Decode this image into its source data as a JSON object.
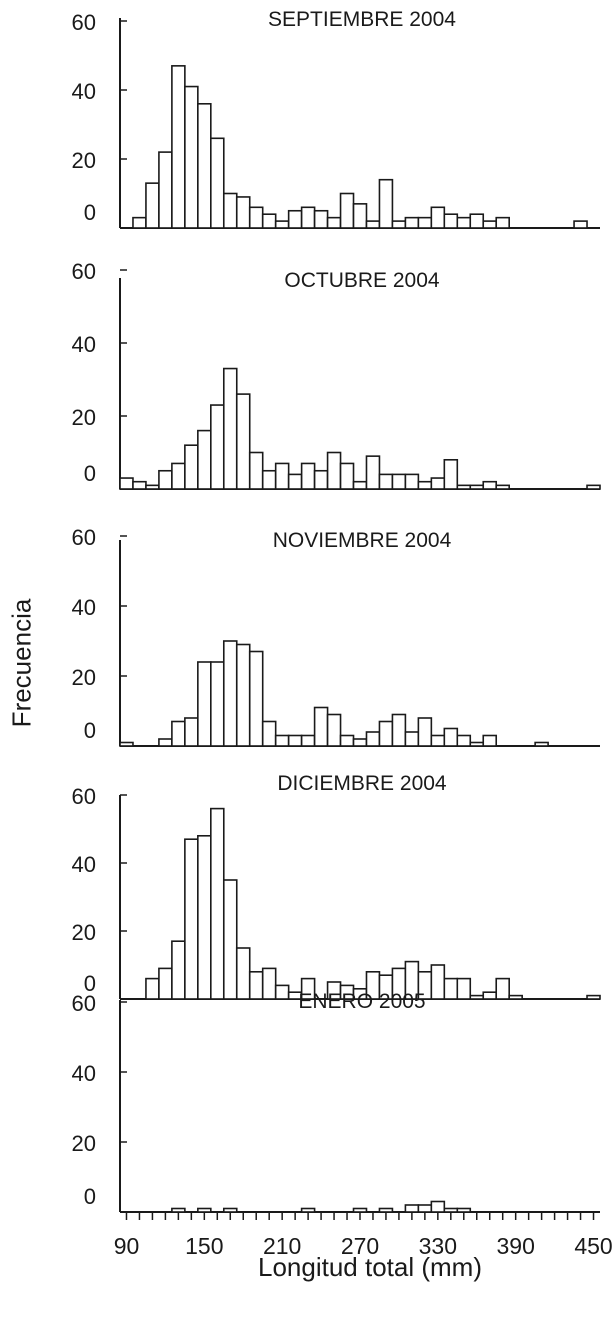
{
  "chart_data": {
    "type": "bar",
    "ylabel": "Frecuencia",
    "xlabel": "Longitud total (mm)",
    "x_ticks": [
      "90",
      "150",
      "210",
      "270",
      "330",
      "390",
      "450"
    ],
    "y_ticks": [
      "0",
      "20",
      "40",
      "60"
    ],
    "ylim": [
      0,
      60
    ],
    "panels": [
      {
        "title": "SEPTIEMBRE 2004",
        "bars": [
          {
            "x": 100,
            "y": 3
          },
          {
            "x": 110,
            "y": 13
          },
          {
            "x": 120,
            "y": 22
          },
          {
            "x": 130,
            "y": 47
          },
          {
            "x": 140,
            "y": 41
          },
          {
            "x": 150,
            "y": 36
          },
          {
            "x": 160,
            "y": 26
          },
          {
            "x": 170,
            "y": 10
          },
          {
            "x": 180,
            "y": 9
          },
          {
            "x": 190,
            "y": 6
          },
          {
            "x": 200,
            "y": 4
          },
          {
            "x": 210,
            "y": 2
          },
          {
            "x": 220,
            "y": 5
          },
          {
            "x": 230,
            "y": 6
          },
          {
            "x": 240,
            "y": 5
          },
          {
            "x": 250,
            "y": 3
          },
          {
            "x": 260,
            "y": 10
          },
          {
            "x": 270,
            "y": 7
          },
          {
            "x": 280,
            "y": 2
          },
          {
            "x": 290,
            "y": 14
          },
          {
            "x": 300,
            "y": 2
          },
          {
            "x": 310,
            "y": 3
          },
          {
            "x": 320,
            "y": 3
          },
          {
            "x": 330,
            "y": 6
          },
          {
            "x": 340,
            "y": 4
          },
          {
            "x": 350,
            "y": 3
          },
          {
            "x": 360,
            "y": 4
          },
          {
            "x": 370,
            "y": 2
          },
          {
            "x": 380,
            "y": 3
          },
          {
            "x": 440,
            "y": 2
          }
        ]
      },
      {
        "title": "OCTUBRE 2004",
        "bars": [
          {
            "x": 90,
            "y": 3
          },
          {
            "x": 100,
            "y": 2
          },
          {
            "x": 110,
            "y": 1
          },
          {
            "x": 120,
            "y": 5
          },
          {
            "x": 130,
            "y": 7
          },
          {
            "x": 140,
            "y": 12
          },
          {
            "x": 150,
            "y": 16
          },
          {
            "x": 160,
            "y": 23
          },
          {
            "x": 170,
            "y": 33
          },
          {
            "x": 180,
            "y": 26
          },
          {
            "x": 190,
            "y": 10
          },
          {
            "x": 200,
            "y": 5
          },
          {
            "x": 210,
            "y": 7
          },
          {
            "x": 220,
            "y": 4
          },
          {
            "x": 230,
            "y": 7
          },
          {
            "x": 240,
            "y": 5
          },
          {
            "x": 250,
            "y": 10
          },
          {
            "x": 260,
            "y": 7
          },
          {
            "x": 270,
            "y": 2
          },
          {
            "x": 280,
            "y": 9
          },
          {
            "x": 290,
            "y": 4
          },
          {
            "x": 300,
            "y": 4
          },
          {
            "x": 310,
            "y": 4
          },
          {
            "x": 320,
            "y": 2
          },
          {
            "x": 330,
            "y": 3
          },
          {
            "x": 340,
            "y": 8
          },
          {
            "x": 350,
            "y": 1
          },
          {
            "x": 360,
            "y": 1
          },
          {
            "x": 370,
            "y": 2
          },
          {
            "x": 380,
            "y": 1
          },
          {
            "x": 450,
            "y": 1
          }
        ]
      },
      {
        "title": "NOVIEMBRE 2004",
        "bars": [
          {
            "x": 90,
            "y": 1
          },
          {
            "x": 120,
            "y": 2
          },
          {
            "x": 130,
            "y": 7
          },
          {
            "x": 140,
            "y": 8
          },
          {
            "x": 150,
            "y": 24
          },
          {
            "x": 160,
            "y": 24
          },
          {
            "x": 170,
            "y": 30
          },
          {
            "x": 180,
            "y": 29
          },
          {
            "x": 190,
            "y": 27
          },
          {
            "x": 200,
            "y": 7
          },
          {
            "x": 210,
            "y": 3
          },
          {
            "x": 220,
            "y": 3
          },
          {
            "x": 230,
            "y": 3
          },
          {
            "x": 240,
            "y": 11
          },
          {
            "x": 250,
            "y": 9
          },
          {
            "x": 260,
            "y": 3
          },
          {
            "x": 270,
            "y": 2
          },
          {
            "x": 280,
            "y": 4
          },
          {
            "x": 290,
            "y": 7
          },
          {
            "x": 300,
            "y": 9
          },
          {
            "x": 310,
            "y": 4
          },
          {
            "x": 320,
            "y": 8
          },
          {
            "x": 330,
            "y": 3
          },
          {
            "x": 340,
            "y": 5
          },
          {
            "x": 350,
            "y": 3
          },
          {
            "x": 360,
            "y": 1
          },
          {
            "x": 370,
            "y": 3
          },
          {
            "x": 410,
            "y": 1
          }
        ]
      },
      {
        "title": "DICIEMBRE 2004",
        "bars": [
          {
            "x": 110,
            "y": 6
          },
          {
            "x": 120,
            "y": 9
          },
          {
            "x": 130,
            "y": 17
          },
          {
            "x": 140,
            "y": 47
          },
          {
            "x": 150,
            "y": 48
          },
          {
            "x": 160,
            "y": 56
          },
          {
            "x": 170,
            "y": 35
          },
          {
            "x": 180,
            "y": 15
          },
          {
            "x": 190,
            "y": 8
          },
          {
            "x": 200,
            "y": 9
          },
          {
            "x": 210,
            "y": 4
          },
          {
            "x": 220,
            "y": 2
          },
          {
            "x": 230,
            "y": 6
          },
          {
            "x": 250,
            "y": 5
          },
          {
            "x": 260,
            "y": 4
          },
          {
            "x": 270,
            "y": 3
          },
          {
            "x": 280,
            "y": 8
          },
          {
            "x": 290,
            "y": 7
          },
          {
            "x": 300,
            "y": 9
          },
          {
            "x": 310,
            "y": 11
          },
          {
            "x": 320,
            "y": 8
          },
          {
            "x": 330,
            "y": 10
          },
          {
            "x": 340,
            "y": 6
          },
          {
            "x": 350,
            "y": 6
          },
          {
            "x": 360,
            "y": 1
          },
          {
            "x": 370,
            "y": 2
          },
          {
            "x": 380,
            "y": 6
          },
          {
            "x": 390,
            "y": 1
          },
          {
            "x": 450,
            "y": 1
          }
        ]
      },
      {
        "title": "ENERO 2005",
        "bars": [
          {
            "x": 130,
            "y": 1
          },
          {
            "x": 150,
            "y": 1
          },
          {
            "x": 170,
            "y": 1
          },
          {
            "x": 230,
            "y": 1
          },
          {
            "x": 270,
            "y": 1
          },
          {
            "x": 290,
            "y": 1
          },
          {
            "x": 310,
            "y": 2
          },
          {
            "x": 320,
            "y": 2
          },
          {
            "x": 330,
            "y": 3
          },
          {
            "x": 340,
            "y": 1
          },
          {
            "x": 350,
            "y": 1
          }
        ]
      }
    ]
  }
}
